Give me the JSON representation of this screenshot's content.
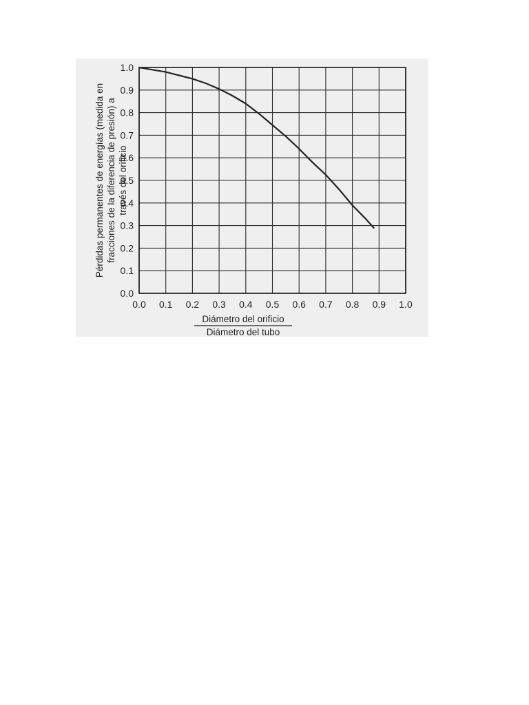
{
  "chart_data": {
    "type": "line",
    "title": "",
    "ylabel_lines": [
      "Pérdidas permanentes de energías (medida en",
      "fracciones  de la diferencia de presión) a",
      "través del orificio"
    ],
    "xlabel_numerator": "Diámetro del orificio",
    "xlabel_denominator": "Diámetro del tubo",
    "xlim": [
      0.0,
      1.0
    ],
    "ylim": [
      0.0,
      1.0
    ],
    "x_ticks": [
      "0.0",
      "0.1",
      "0.2",
      "0.3",
      "0.4",
      "0.5",
      "0.6",
      "0.7",
      "0.8",
      "0.9",
      "1.0"
    ],
    "y_ticks": [
      "0.0",
      "0.1",
      "0.2",
      "0.3",
      "0.4",
      "0.5",
      "0.6",
      "0.7",
      "0.8",
      "0.9",
      "1.0"
    ],
    "grid": true,
    "series": [
      {
        "x": [
          0.0,
          0.05,
          0.1,
          0.15,
          0.2,
          0.25,
          0.3,
          0.35,
          0.4,
          0.45,
          0.5,
          0.55,
          0.6,
          0.65,
          0.7,
          0.75,
          0.8,
          0.85,
          0.88
        ],
        "y": [
          1.0,
          0.99,
          0.98,
          0.965,
          0.95,
          0.93,
          0.905,
          0.875,
          0.84,
          0.795,
          0.745,
          0.695,
          0.64,
          0.58,
          0.525,
          0.46,
          0.39,
          0.33,
          0.29
        ]
      }
    ],
    "colors": {
      "line": "#222222",
      "grid": "#2a2a2a",
      "background": "#efefef"
    }
  }
}
